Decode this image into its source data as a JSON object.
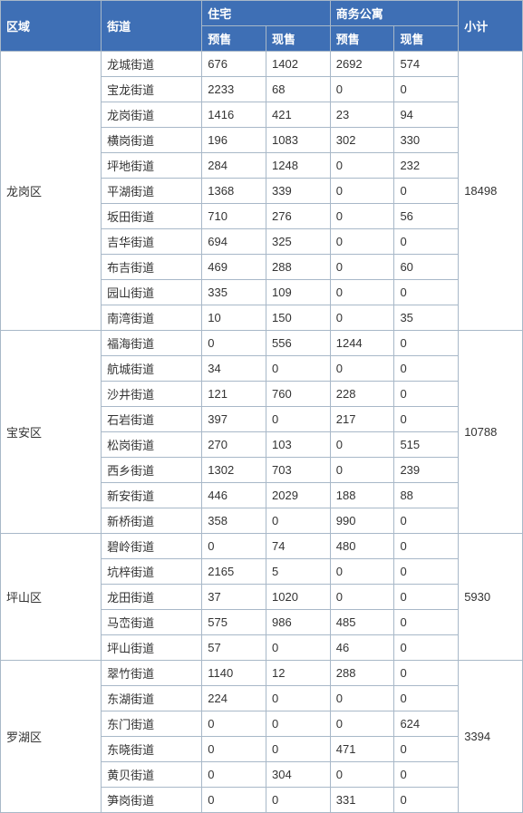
{
  "header": {
    "region": "区域",
    "street": "街道",
    "residential": "住宅",
    "business_apt": "商务公寓",
    "subtotal": "小计",
    "presale": "预售",
    "resale": "现售"
  },
  "colors": {
    "header_bg": "#3e6fb5",
    "header_fg": "#ffffff",
    "border": "#a8b8c8",
    "cell_bg": "#ffffff",
    "cell_fg": "#333333"
  },
  "regions": [
    {
      "name": "龙岗区",
      "subtotal": "18498",
      "rows": [
        {
          "street": "龙城街道",
          "r_pre": "676",
          "r_cur": "1402",
          "b_pre": "2692",
          "b_cur": "574"
        },
        {
          "street": "宝龙街道",
          "r_pre": "2233",
          "r_cur": "68",
          "b_pre": "0",
          "b_cur": "0"
        },
        {
          "street": "龙岗街道",
          "r_pre": "1416",
          "r_cur": "421",
          "b_pre": "23",
          "b_cur": "94"
        },
        {
          "street": "横岗街道",
          "r_pre": "196",
          "r_cur": "1083",
          "b_pre": "302",
          "b_cur": "330"
        },
        {
          "street": "坪地街道",
          "r_pre": "284",
          "r_cur": "1248",
          "b_pre": "0",
          "b_cur": "232"
        },
        {
          "street": "平湖街道",
          "r_pre": "1368",
          "r_cur": "339",
          "b_pre": "0",
          "b_cur": "0"
        },
        {
          "street": "坂田街道",
          "r_pre": "710",
          "r_cur": "276",
          "b_pre": "0",
          "b_cur": "56"
        },
        {
          "street": "吉华街道",
          "r_pre": "694",
          "r_cur": "325",
          "b_pre": "0",
          "b_cur": "0"
        },
        {
          "street": "布吉街道",
          "r_pre": "469",
          "r_cur": "288",
          "b_pre": "0",
          "b_cur": "60"
        },
        {
          "street": "园山街道",
          "r_pre": "335",
          "r_cur": "109",
          "b_pre": "0",
          "b_cur": "0"
        },
        {
          "street": "南湾街道",
          "r_pre": "10",
          "r_cur": "150",
          "b_pre": "0",
          "b_cur": "35"
        }
      ]
    },
    {
      "name": "宝安区",
      "subtotal": "10788",
      "rows": [
        {
          "street": "福海街道",
          "r_pre": "0",
          "r_cur": "556",
          "b_pre": "1244",
          "b_cur": "0"
        },
        {
          "street": "航城街道",
          "r_pre": "34",
          "r_cur": "0",
          "b_pre": "0",
          "b_cur": "0"
        },
        {
          "street": "沙井街道",
          "r_pre": "121",
          "r_cur": "760",
          "b_pre": "228",
          "b_cur": "0"
        },
        {
          "street": "石岩街道",
          "r_pre": "397",
          "r_cur": "0",
          "b_pre": "217",
          "b_cur": "0"
        },
        {
          "street": "松岗街道",
          "r_pre": "270",
          "r_cur": "103",
          "b_pre": "0",
          "b_cur": "515"
        },
        {
          "street": "西乡街道",
          "r_pre": "1302",
          "r_cur": "703",
          "b_pre": "0",
          "b_cur": "239"
        },
        {
          "street": "新安街道",
          "r_pre": "446",
          "r_cur": "2029",
          "b_pre": "188",
          "b_cur": "88"
        },
        {
          "street": "新桥街道",
          "r_pre": "358",
          "r_cur": "0",
          "b_pre": "990",
          "b_cur": "0"
        }
      ]
    },
    {
      "name": "坪山区",
      "subtotal": "5930",
      "rows": [
        {
          "street": "碧岭街道",
          "r_pre": "0",
          "r_cur": "74",
          "b_pre": "480",
          "b_cur": "0"
        },
        {
          "street": "坑梓街道",
          "r_pre": "2165",
          "r_cur": "5",
          "b_pre": "0",
          "b_cur": "0"
        },
        {
          "street": "龙田街道",
          "r_pre": "37",
          "r_cur": "1020",
          "b_pre": "0",
          "b_cur": "0"
        },
        {
          "street": "马峦街道",
          "r_pre": "575",
          "r_cur": "986",
          "b_pre": "485",
          "b_cur": "0"
        },
        {
          "street": "坪山街道",
          "r_pre": "57",
          "r_cur": "0",
          "b_pre": "46",
          "b_cur": "0"
        }
      ]
    },
    {
      "name": "罗湖区",
      "subtotal": "3394",
      "rows": [
        {
          "street": "翠竹街道",
          "r_pre": "1140",
          "r_cur": "12",
          "b_pre": "288",
          "b_cur": "0"
        },
        {
          "street": "东湖街道",
          "r_pre": "224",
          "r_cur": "0",
          "b_pre": "0",
          "b_cur": "0"
        },
        {
          "street": "东门街道",
          "r_pre": "0",
          "r_cur": "0",
          "b_pre": "0",
          "b_cur": "624"
        },
        {
          "street": "东晓街道",
          "r_pre": "0",
          "r_cur": "0",
          "b_pre": "471",
          "b_cur": "0"
        },
        {
          "street": "黄贝街道",
          "r_pre": "0",
          "r_cur": "304",
          "b_pre": "0",
          "b_cur": "0"
        },
        {
          "street": "笋岗街道",
          "r_pre": "0",
          "r_cur": "0",
          "b_pre": "331",
          "b_cur": "0"
        }
      ]
    }
  ]
}
